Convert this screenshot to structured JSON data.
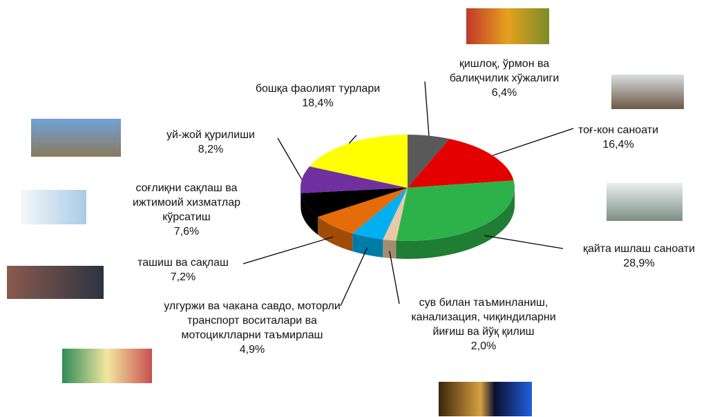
{
  "chart_data": {
    "type": "pie3d",
    "categories": [
      "қишлоқ, ўрмон ва балиқчилик хўжалиги",
      "тоғ-кон саноати",
      "қайта ишлаш саноати",
      "сув билан таъминланиш, канализация, чиқиндиларни йиғиш ва йўқ қилиш",
      "улгуржи ва чакана савдо, моторли транспорт воситалари ва мотоциклларни таъмирлаш",
      "ташиш ва сақлаш",
      "соғлиқни сақлаш ва ижтимоий хизматлар кўрсатиш",
      "уй-жой қурилиши",
      "бошқа фаолият турлари"
    ],
    "values": [
      6.4,
      16.4,
      28.9,
      2.0,
      4.9,
      7.2,
      7.6,
      8.2,
      18.4
    ],
    "value_labels": [
      "6,4%",
      "16,4%",
      "28,9%",
      "2,0%",
      "4,9%",
      "7,2%",
      "7,6%",
      "8,2%",
      "18,4%"
    ],
    "colors": [
      "#595959",
      "#e50000",
      "#2db24a",
      "#e8c9a6",
      "#00b0f0",
      "#e46c0a",
      "#000000",
      "#7030a0",
      "#ffff00"
    ]
  }
}
